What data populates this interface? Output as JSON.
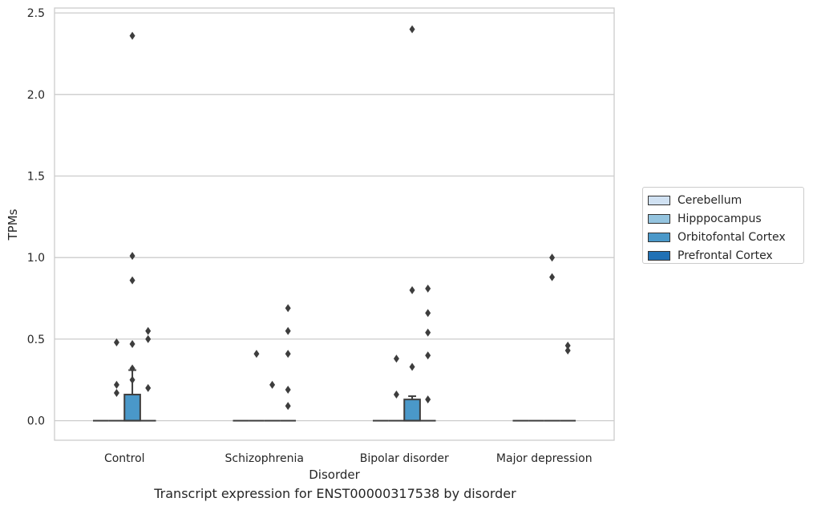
{
  "chart_data": {
    "type": "box",
    "xlabel": "Disorder",
    "ylabel": "TPMs",
    "caption": "Transcript expression for ENST00000317538 by disorder",
    "categories": [
      "Control",
      "Schizophrenia",
      "Bipolar disorder",
      "Major depression"
    ],
    "ylim": [
      -0.12,
      2.53
    ],
    "yticks": [
      0.0,
      0.5,
      1.0,
      1.5,
      2.0,
      2.5
    ],
    "ytick_labels": [
      "0.0",
      "0.5",
      "1.0",
      "1.5",
      "2.0",
      "2.5"
    ],
    "grid": "horizontal",
    "legend_position": "right",
    "series": [
      {
        "name": "Cerebellum",
        "color": "#d0e1f2",
        "boxes": [
          {
            "category": "Control",
            "q1": 0,
            "median": 0,
            "q3": 0,
            "whisker_low": 0,
            "whisker_high": 0,
            "outliers": []
          },
          {
            "category": "Schizophrenia",
            "q1": 0,
            "median": 0,
            "q3": 0,
            "whisker_low": 0,
            "whisker_high": 0,
            "outliers": []
          },
          {
            "category": "Bipolar disorder",
            "q1": 0,
            "median": 0,
            "q3": 0,
            "whisker_low": 0,
            "whisker_high": 0,
            "outliers": []
          },
          {
            "category": "Major depression",
            "q1": 0,
            "median": 0,
            "q3": 0,
            "whisker_low": 0,
            "whisker_high": 0,
            "outliers": []
          }
        ]
      },
      {
        "name": "Hipppocampus",
        "color": "#94c4df",
        "boxes": [
          {
            "category": "Control",
            "q1": 0,
            "median": 0,
            "q3": 0,
            "whisker_low": 0,
            "whisker_high": 0,
            "outliers": [
              0.48,
              0.22,
              0.17
            ]
          },
          {
            "category": "Schizophrenia",
            "q1": 0,
            "median": 0,
            "q3": 0,
            "whisker_low": 0,
            "whisker_high": 0,
            "outliers": [
              0.41
            ]
          },
          {
            "category": "Bipolar disorder",
            "q1": 0,
            "median": 0,
            "q3": 0,
            "whisker_low": 0,
            "whisker_high": 0,
            "outliers": [
              0.38,
              0.16
            ]
          },
          {
            "category": "Major depression",
            "q1": 0,
            "median": 0,
            "q3": 0,
            "whisker_low": 0,
            "whisker_high": 0,
            "outliers": []
          }
        ]
      },
      {
        "name": "Orbitofontal Cortex",
        "color": "#4a98c9",
        "boxes": [
          {
            "category": "Control",
            "q1": 0,
            "median": 0,
            "q3": 0.16,
            "whisker_low": 0,
            "whisker_high": 0.31,
            "outliers": [
              2.36,
              1.01,
              0.86,
              0.47,
              0.32,
              0.25
            ]
          },
          {
            "category": "Schizophrenia",
            "q1": 0,
            "median": 0,
            "q3": 0,
            "whisker_low": 0,
            "whisker_high": 0,
            "outliers": [
              0.22
            ]
          },
          {
            "category": "Bipolar disorder",
            "q1": 0,
            "median": 0,
            "q3": 0.13,
            "whisker_low": 0,
            "whisker_high": 0.15,
            "outliers": [
              2.4,
              0.8,
              0.33
            ]
          },
          {
            "category": "Major depression",
            "q1": 0,
            "median": 0,
            "q3": 0,
            "whisker_low": 0,
            "whisker_high": 0,
            "outliers": [
              1.0,
              0.88
            ]
          }
        ]
      },
      {
        "name": "Prefrontal Cortex",
        "color": "#2171b5",
        "boxes": [
          {
            "category": "Control",
            "q1": 0,
            "median": 0,
            "q3": 0,
            "whisker_low": 0,
            "whisker_high": 0,
            "outliers": [
              0.55,
              0.5,
              0.2
            ]
          },
          {
            "category": "Schizophrenia",
            "q1": 0,
            "median": 0,
            "q3": 0,
            "whisker_low": 0,
            "whisker_high": 0,
            "outliers": [
              0.69,
              0.55,
              0.41,
              0.19,
              0.09
            ]
          },
          {
            "category": "Bipolar disorder",
            "q1": 0,
            "median": 0,
            "q3": 0,
            "whisker_low": 0,
            "whisker_high": 0,
            "outliers": [
              0.81,
              0.66,
              0.54,
              0.4,
              0.13
            ]
          },
          {
            "category": "Major depression",
            "q1": 0,
            "median": 0,
            "q3": 0,
            "whisker_low": 0,
            "whisker_high": 0,
            "outliers": [
              0.46,
              0.43
            ]
          }
        ]
      }
    ]
  }
}
